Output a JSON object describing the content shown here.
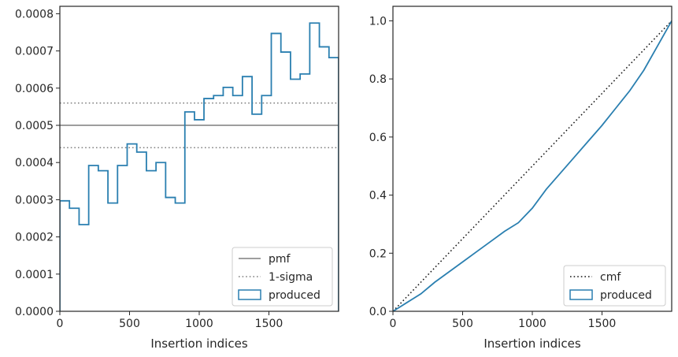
{
  "chart_data": [
    {
      "type": "step",
      "xlabel": "Insertion indices",
      "ylabel": "",
      "xlim": [
        0,
        2000
      ],
      "ylim": [
        0,
        0.00082
      ],
      "xticks": [
        0,
        500,
        1000,
        1500
      ],
      "yticks": [
        0,
        0.0001,
        0.0002,
        0.0003,
        0.0004,
        0.0005,
        0.0006,
        0.0007,
        0.0008
      ],
      "ytick_labels": [
        "0.0000",
        "0.0001",
        "0.0002",
        "0.0003",
        "0.0004",
        "0.0005",
        "0.0006",
        "0.0007",
        "0.0008"
      ],
      "legend_position": "lower-right",
      "reference_lines": [
        {
          "name": "pmf",
          "y": 0.0005,
          "style": "solid",
          "color": "#7f7f7f"
        },
        {
          "name": "1-sigma",
          "y": 0.00056,
          "style": "dotted",
          "color": "#7f7f7f"
        },
        {
          "name": "1-sigma",
          "y": 0.00044,
          "style": "dotted",
          "color": "#7f7f7f",
          "in_legend": false
        }
      ],
      "series": [
        {
          "name": "produced",
          "color": "#2a7fb0",
          "bin_edges": [
            0,
            69,
            138,
            207,
            276,
            345,
            414,
            483,
            552,
            621,
            690,
            759,
            828,
            897,
            966,
            1034,
            1103,
            1172,
            1241,
            1310,
            1379,
            1448,
            1517,
            1586,
            1655,
            1724,
            1793,
            1862,
            1931,
            2000
          ],
          "values": [
            0.000297,
            0.000277,
            0.000233,
            0.000392,
            0.000378,
            0.000291,
            0.000392,
            0.00045,
            0.000428,
            0.000378,
            0.0004,
            0.000306,
            0.000291,
            0.000536,
            0.000515,
            0.000572,
            0.00058,
            0.000602,
            0.00058,
            0.000631,
            0.00053,
            0.00058,
            0.000747,
            0.000697,
            0.000624,
            0.000638,
            0.000775,
            0.000711,
            0.000682
          ]
        }
      ]
    },
    {
      "type": "line",
      "xlabel": "Insertion indices",
      "ylabel": "",
      "xlim": [
        0,
        2000
      ],
      "ylim": [
        0,
        1.05
      ],
      "xticks": [
        0,
        500,
        1000,
        1500
      ],
      "yticks": [
        0,
        0.2,
        0.4,
        0.6,
        0.8,
        1.0
      ],
      "ytick_labels": [
        "0.0",
        "0.2",
        "0.4",
        "0.6",
        "0.8",
        "1.0"
      ],
      "legend_position": "lower-right",
      "reference_lines": [
        {
          "name": "cmf",
          "points": [
            [
              0,
              0
            ],
            [
              2000,
              1.0
            ]
          ],
          "style": "dotted",
          "color": "#111111"
        }
      ],
      "series": [
        {
          "name": "produced",
          "color": "#2a7fb0",
          "x": [
            0,
            100,
            200,
            300,
            400,
            500,
            600,
            700,
            800,
            900,
            1000,
            1100,
            1200,
            1300,
            1400,
            1500,
            1600,
            1700,
            1800,
            1900,
            2000
          ],
          "y": [
            0,
            0.03,
            0.06,
            0.1,
            0.135,
            0.17,
            0.205,
            0.24,
            0.275,
            0.305,
            0.355,
            0.42,
            0.475,
            0.53,
            0.585,
            0.64,
            0.7,
            0.76,
            0.83,
            0.915,
            1.0
          ]
        }
      ]
    }
  ]
}
